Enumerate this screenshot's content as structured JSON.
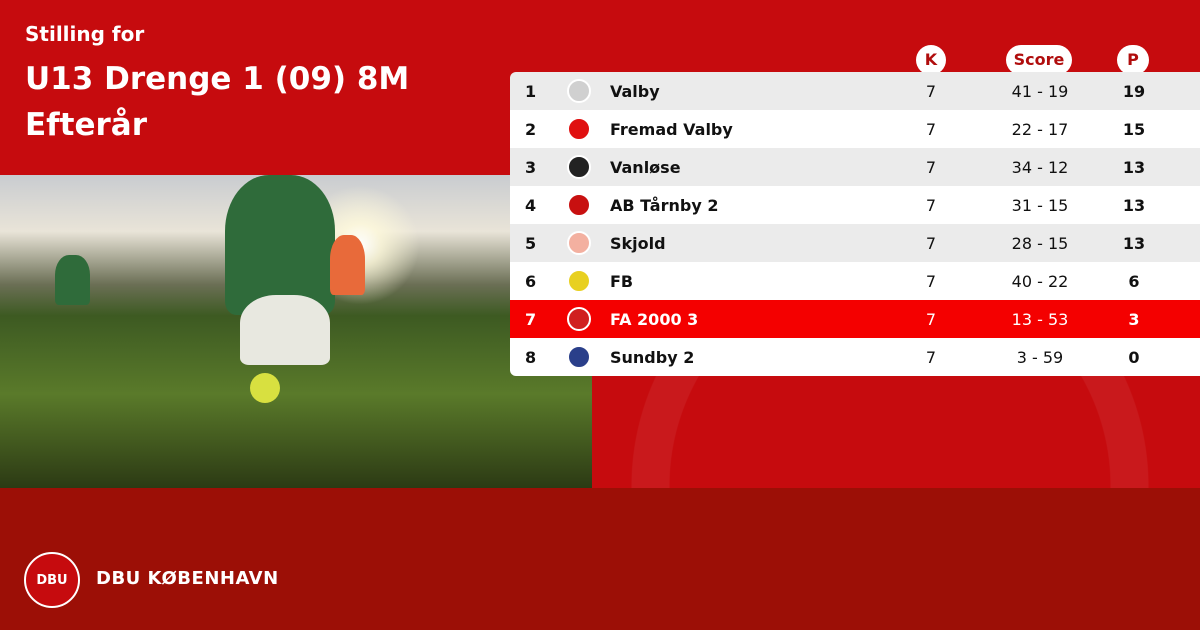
{
  "header": {
    "subtitle": "Stilling for",
    "title": "U13 Drenge 1 (09) 8M Efterår"
  },
  "columns": {
    "k": "K",
    "score": "Score",
    "p": "P"
  },
  "rows": [
    {
      "pos": "1",
      "team": "Valby",
      "k": "7",
      "score": "41 - 19",
      "p": "19",
      "logo_color": "#d0d0d0"
    },
    {
      "pos": "2",
      "team": "Fremad Valby",
      "k": "7",
      "score": "22 - 17",
      "p": "15",
      "logo_color": "#e01010"
    },
    {
      "pos": "3",
      "team": "Vanløse",
      "k": "7",
      "score": "34 - 12",
      "p": "13",
      "logo_color": "#222222"
    },
    {
      "pos": "4",
      "team": "AB Tårnby 2",
      "k": "7",
      "score": "31 - 15",
      "p": "13",
      "logo_color": "#c81010"
    },
    {
      "pos": "5",
      "team": "Skjold",
      "k": "7",
      "score": "28 - 15",
      "p": "13",
      "logo_color": "#f3b0a0"
    },
    {
      "pos": "6",
      "team": "FB",
      "k": "7",
      "score": "40 - 22",
      "p": "6",
      "logo_color": "#e8d020"
    },
    {
      "pos": "7",
      "team": "FA 2000 3",
      "k": "7",
      "score": "13 - 53",
      "p": "3",
      "logo_color": "#d02020",
      "highlight": true
    },
    {
      "pos": "8",
      "team": "Sundby 2",
      "k": "7",
      "score": "3 - 59",
      "p": "0",
      "logo_color": "#2a3f8a"
    }
  ],
  "footer": {
    "brand": "DBU KØBENHAVN",
    "logo_text": "DBU"
  },
  "colors": {
    "primary": "#c60b0e",
    "footer": "#9c0f06",
    "highlight": "#f40000"
  }
}
